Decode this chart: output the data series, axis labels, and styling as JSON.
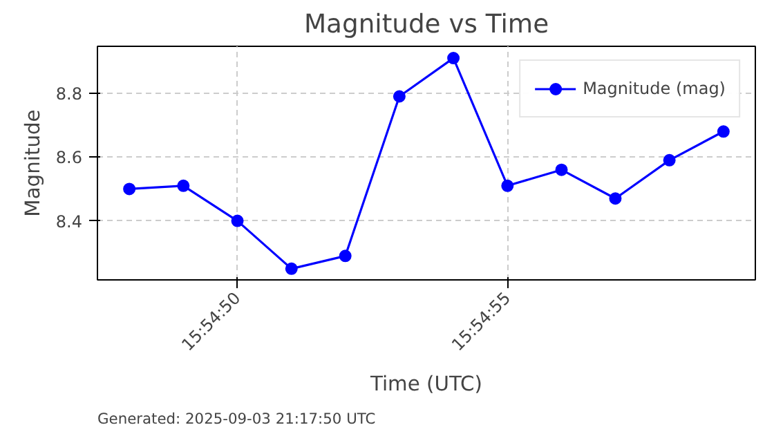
{
  "chart_data": {
    "type": "line",
    "title": "Magnitude vs Time",
    "xlabel": "Time (UTC)",
    "ylabel": "Magnitude",
    "x": [
      15.913333,
      15.913611,
      15.913889,
      15.914167,
      15.914444,
      15.914722,
      15.915,
      15.915278,
      15.915556,
      15.915833,
      15.916111,
      15.916389
    ],
    "series": [
      {
        "name": "Magnitude (mag)",
        "color": "#0000ff",
        "values": [
          8.5,
          8.51,
          8.4,
          8.25,
          8.29,
          8.79,
          8.91,
          8.51,
          8.56,
          8.47,
          8.59,
          8.68
        ]
      }
    ],
    "xlim": [
      15.913169,
      15.916553
    ],
    "xticks": [
      {
        "value": 15.913889,
        "label": "15:54:50"
      },
      {
        "value": 15.915278,
        "label": "15:54:55"
      }
    ],
    "ylim": [
      8.215,
      8.947
    ],
    "yticks": [
      {
        "value": 8.4,
        "label": "8.4"
      },
      {
        "value": 8.6,
        "label": "8.6"
      },
      {
        "value": 8.8,
        "label": "8.8"
      }
    ],
    "grid": true,
    "legend": "top right",
    "marker": "circle",
    "line_style": "solid",
    "annotations": [
      "Generated: 2025-09-03 21:17:50 UTC"
    ]
  }
}
